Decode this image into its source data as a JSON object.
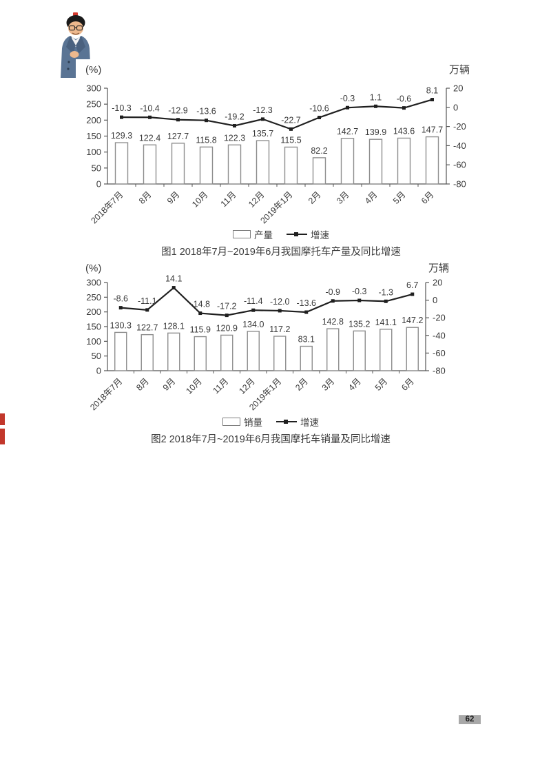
{
  "page": {
    "page_number": "62",
    "background_color": "#ffffff"
  },
  "presenter_photo": "man-in-blue-suit-portrait",
  "colors": {
    "bar_fill": "#ffffff",
    "bar_stroke": "#8d8d8d",
    "line_color": "#1f1f1f",
    "axis_color": "#555555",
    "text_color": "#3a3a3a",
    "red_edge_mark": "#c2372b",
    "page_number_bg": "#a8a8a8"
  },
  "chart_data": [
    {
      "type": "combo_bar_line",
      "title": "图1  2018年7月~2019年6月我国摩托车产量及同比增速",
      "categories": [
        "2018年7月",
        "8月",
        "9月",
        "10月",
        "11月",
        "12月",
        "2019年1月",
        "2月",
        "3月",
        "4月",
        "5月",
        "6月"
      ],
      "left_axis": {
        "title": "(%)",
        "ticks": [
          300,
          250,
          200,
          150,
          100,
          50,
          0
        ],
        "range": [
          0,
          300
        ]
      },
      "right_axis": {
        "title": "万辆",
        "ticks": [
          20,
          0,
          -20,
          -40,
          -60,
          -80
        ],
        "range": [
          -80,
          20
        ]
      },
      "series": [
        {
          "name": "产量",
          "type": "bar",
          "axis": "left",
          "values": [
            "129.3",
            "122.4",
            "127.7",
            "115.8",
            "122.3",
            "135.7",
            "115.5",
            "82.2",
            "142.7",
            "139.9",
            "143.6",
            "147.7"
          ]
        },
        {
          "name": "增速",
          "type": "line",
          "axis": "right",
          "values": [
            "-10.3",
            "-10.4",
            "-12.9",
            "-13.6",
            "-19.2",
            "-12.3",
            "-22.7",
            "-10.6",
            "-0.3",
            "1.1",
            "-0.6",
            "8.1"
          ]
        }
      ],
      "legend_position": "bottom",
      "grid": false
    },
    {
      "type": "combo_bar_line",
      "title": "图2  2018年7月~2019年6月我国摩托车销量及同比增速",
      "categories": [
        "2018年7月",
        "8月",
        "9月",
        "10月",
        "11月",
        "12月",
        "2019年1月",
        "2月",
        "3月",
        "4月",
        "5月",
        "6月"
      ],
      "left_axis": {
        "title": "(%)",
        "ticks": [
          300,
          250,
          200,
          150,
          100,
          50,
          0
        ],
        "range": [
          0,
          300
        ]
      },
      "right_axis": {
        "title": "万辆",
        "ticks": [
          20,
          0,
          -20,
          -40,
          -60,
          -80
        ],
        "range": [
          -80,
          20
        ]
      },
      "series": [
        {
          "name": "销量",
          "type": "bar",
          "axis": "left",
          "values": [
            "130.3",
            "122.7",
            "128.1",
            "115.9",
            "120.9",
            "134.0",
            "117.2",
            "83.1",
            "142.8",
            "135.2",
            "141.1",
            "147.2"
          ]
        },
        {
          "name": "增速",
          "type": "line",
          "axis": "right",
          "values": [
            "-8.6",
            "-11.1",
            "14.1",
            "-14.8",
            "-17.2",
            "-11.4",
            "-12.0",
            "-13.6",
            "-0.9",
            "-0.3",
            "-1.3",
            "6.7"
          ]
        }
      ],
      "legend_position": "bottom",
      "grid": false
    }
  ]
}
